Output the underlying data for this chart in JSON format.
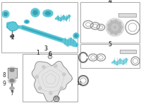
{
  "bg_color": "#ffffff",
  "blue": "#5bc8d8",
  "gray": "#aaaaaa",
  "dark": "#555555",
  "lgray": "#cccccc",
  "lc": "#333333",
  "figsize": [
    2.0,
    1.47
  ],
  "dpi": 100
}
